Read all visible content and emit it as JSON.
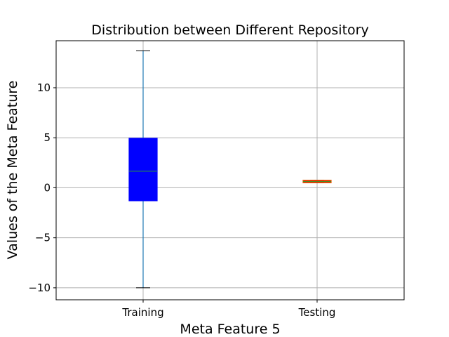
{
  "chart_data": {
    "type": "box",
    "title": "Distribution between Different Repository",
    "xlabel": "Meta Feature 5",
    "ylabel": "Values of the Meta Feature",
    "ylim": [
      -11.2,
      14.7
    ],
    "yticks": [
      -10,
      -5,
      0,
      5,
      10
    ],
    "ytick_labels": [
      "−10",
      "−5",
      "0",
      "5",
      "10"
    ],
    "grid": true,
    "categories": [
      "Training",
      "Testing"
    ],
    "boxes": [
      {
        "name": "Training",
        "whisker_low": -10.0,
        "q1": -1.3,
        "median": 1.65,
        "q3": 4.95,
        "whisker_high": 13.7,
        "fill": "#0000ff",
        "edge": "#0000ff"
      },
      {
        "name": "Testing",
        "whisker_low": 0.5,
        "q1": 0.5,
        "median": 0.62,
        "q3": 0.75,
        "whisker_high": 0.75,
        "fill": "#ff0000",
        "edge": "#e05a00"
      }
    ],
    "colors": {
      "whisker": "#1f77b4",
      "median": "#2ca02c",
      "grid": "#b0b0b0"
    }
  }
}
